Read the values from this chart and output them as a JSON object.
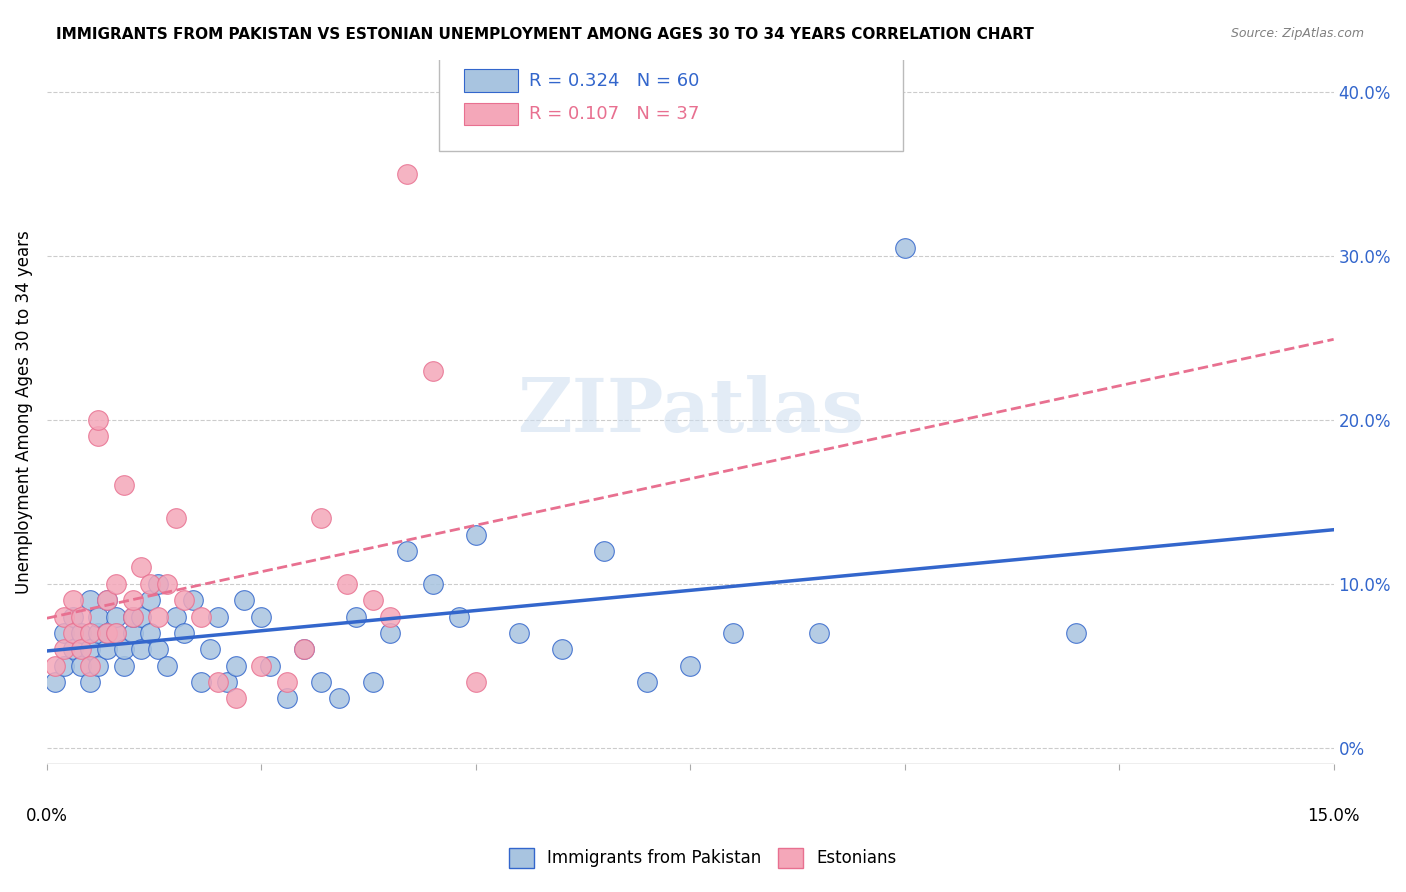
{
  "title": "IMMIGRANTS FROM PAKISTAN VS ESTONIAN UNEMPLOYMENT AMONG AGES 30 TO 34 YEARS CORRELATION CHART",
  "source": "Source: ZipAtlas.com",
  "ylabel": "Unemployment Among Ages 30 to 34 years",
  "ylabel_right_ticks": [
    "0%",
    "10.0%",
    "20.0%",
    "30.0%",
    "40.0%"
  ],
  "ylabel_right_vals": [
    0.0,
    0.1,
    0.2,
    0.3,
    0.4
  ],
  "xlim": [
    0.0,
    0.15
  ],
  "ylim": [
    -0.01,
    0.42
  ],
  "blue_R": "0.324",
  "blue_N": "60",
  "pink_R": "0.107",
  "pink_N": "37",
  "blue_color": "#a8c4e0",
  "pink_color": "#f4a7b9",
  "blue_line_color": "#3366cc",
  "pink_line_color": "#e87090",
  "blue_scatter_x": [
    0.001,
    0.002,
    0.002,
    0.003,
    0.003,
    0.004,
    0.004,
    0.005,
    0.005,
    0.005,
    0.006,
    0.006,
    0.006,
    0.007,
    0.007,
    0.007,
    0.008,
    0.008,
    0.009,
    0.009,
    0.01,
    0.01,
    0.011,
    0.011,
    0.012,
    0.012,
    0.013,
    0.013,
    0.014,
    0.015,
    0.016,
    0.017,
    0.018,
    0.019,
    0.02,
    0.021,
    0.022,
    0.023,
    0.025,
    0.026,
    0.028,
    0.03,
    0.032,
    0.034,
    0.036,
    0.038,
    0.04,
    0.042,
    0.045,
    0.048,
    0.05,
    0.055,
    0.06,
    0.065,
    0.07,
    0.075,
    0.08,
    0.09,
    0.1,
    0.12
  ],
  "blue_scatter_y": [
    0.04,
    0.05,
    0.07,
    0.06,
    0.08,
    0.05,
    0.07,
    0.04,
    0.06,
    0.09,
    0.05,
    0.07,
    0.08,
    0.06,
    0.07,
    0.09,
    0.07,
    0.08,
    0.05,
    0.06,
    0.07,
    0.08,
    0.06,
    0.08,
    0.07,
    0.09,
    0.06,
    0.1,
    0.05,
    0.08,
    0.07,
    0.09,
    0.04,
    0.06,
    0.08,
    0.04,
    0.05,
    0.09,
    0.08,
    0.05,
    0.03,
    0.06,
    0.04,
    0.03,
    0.08,
    0.04,
    0.07,
    0.12,
    0.1,
    0.08,
    0.13,
    0.07,
    0.06,
    0.12,
    0.04,
    0.05,
    0.07,
    0.07,
    0.305,
    0.07
  ],
  "pink_scatter_x": [
    0.001,
    0.002,
    0.002,
    0.003,
    0.003,
    0.004,
    0.004,
    0.005,
    0.005,
    0.006,
    0.006,
    0.007,
    0.007,
    0.008,
    0.008,
    0.009,
    0.01,
    0.01,
    0.011,
    0.012,
    0.013,
    0.014,
    0.015,
    0.016,
    0.018,
    0.02,
    0.022,
    0.025,
    0.028,
    0.03,
    0.032,
    0.035,
    0.038,
    0.04,
    0.042,
    0.045,
    0.05
  ],
  "pink_scatter_y": [
    0.05,
    0.06,
    0.08,
    0.07,
    0.09,
    0.06,
    0.08,
    0.05,
    0.07,
    0.19,
    0.2,
    0.07,
    0.09,
    0.1,
    0.07,
    0.16,
    0.08,
    0.09,
    0.11,
    0.1,
    0.08,
    0.1,
    0.14,
    0.09,
    0.08,
    0.04,
    0.03,
    0.05,
    0.04,
    0.06,
    0.14,
    0.1,
    0.09,
    0.08,
    0.35,
    0.23,
    0.04
  ]
}
